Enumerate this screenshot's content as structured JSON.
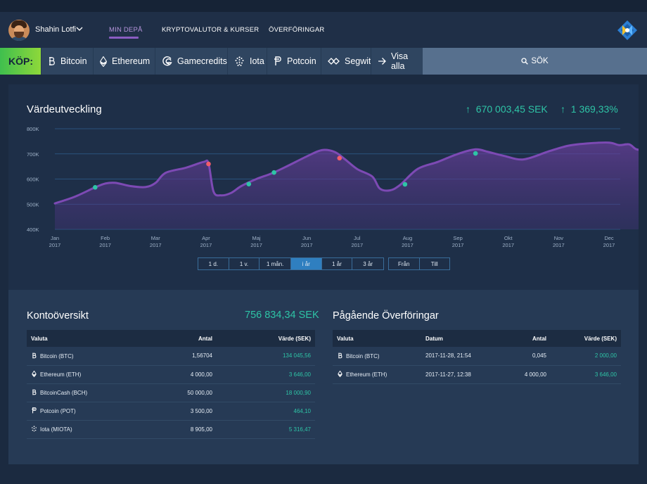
{
  "nav": {
    "username": "Shahin Lotfi",
    "links": [
      "MIN DEPÅ",
      "KRYPTOVALUTOR & KURSER",
      "ÖVERFÖRINGAR"
    ],
    "active_link": "MIN DEPÅ"
  },
  "buybar": {
    "label": "KÖP:",
    "coins": [
      {
        "label": "Bitcoin",
        "icon": "bitcoin-icon"
      },
      {
        "label": "Ethereum",
        "icon": "ethereum-icon"
      },
      {
        "label": "Gamecredits",
        "icon": "gamecredits-icon"
      },
      {
        "label": "Iota",
        "icon": "iota-icon"
      },
      {
        "label": "Potcoin",
        "icon": "potcoin-icon"
      },
      {
        "label": "Segwit",
        "icon": "segwit-icon"
      },
      {
        "label": "Visa alla",
        "icon": "arrow-right-icon"
      }
    ],
    "search_label": "SÖK"
  },
  "chart": {
    "title": "Värdeutveckling",
    "value_stat": "670 003,45 SEK",
    "percent_stat": "1 369,33%",
    "ranges": [
      "1 d.",
      "1 v.",
      "1 mån.",
      "i år",
      "1 år",
      "3 år"
    ],
    "active_range": "i år",
    "date_filters": [
      "Från",
      "Till"
    ]
  },
  "chart_data": {
    "type": "area",
    "x": [
      "Jan\n2017",
      "Feb\n2017",
      "Mar\n2017",
      "Apr\n2017",
      "Maj\n2017",
      "Jun\n2017",
      "Jul\n2017",
      "Aug\n2017",
      "Sep\n2017",
      "Okt\n2017",
      "Nov\n2017",
      "Dec\n2017"
    ],
    "xlabels": [
      {
        "month": "Jan",
        "year": "2017"
      },
      {
        "month": "Feb",
        "year": "2017"
      },
      {
        "month": "Mar",
        "year": "2017"
      },
      {
        "month": "Apr",
        "year": "2017"
      },
      {
        "month": "Maj",
        "year": "2017"
      },
      {
        "month": "Jun",
        "year": "2017"
      },
      {
        "month": "Jul",
        "year": "2017"
      },
      {
        "month": "Aug",
        "year": "2017"
      },
      {
        "month": "Sep",
        "year": "2017"
      },
      {
        "month": "Okt",
        "year": "2017"
      },
      {
        "month": "Nov",
        "year": "2017"
      },
      {
        "month": "Dec",
        "year": "2017"
      }
    ],
    "yticks": [
      "400K",
      "500K",
      "600K",
      "700K",
      "800K"
    ],
    "ylim": [
      400000,
      800000
    ],
    "series": [
      {
        "points": [
          [
            0.0,
            503000
          ],
          [
            0.4,
            530000
          ],
          [
            0.8,
            567000
          ],
          [
            1.0,
            582000
          ],
          [
            1.2,
            585000
          ],
          [
            1.5,
            572000
          ],
          [
            1.8,
            568000
          ],
          [
            2.0,
            585000
          ],
          [
            2.2,
            625000
          ],
          [
            2.6,
            645000
          ],
          [
            2.95,
            668000
          ],
          [
            3.05,
            662000
          ],
          [
            3.15,
            550000
          ],
          [
            3.3,
            535000
          ],
          [
            3.5,
            545000
          ],
          [
            3.7,
            572000
          ],
          [
            4.0,
            600000
          ],
          [
            4.3,
            622000
          ],
          [
            4.6,
            650000
          ],
          [
            5.0,
            690000
          ],
          [
            5.3,
            715000
          ],
          [
            5.55,
            708000
          ],
          [
            5.75,
            680000
          ],
          [
            6.0,
            640000
          ],
          [
            6.3,
            610000
          ],
          [
            6.45,
            562000
          ],
          [
            6.65,
            555000
          ],
          [
            6.85,
            576000
          ],
          [
            7.2,
            640000
          ],
          [
            7.6,
            668000
          ],
          [
            8.0,
            700000
          ],
          [
            8.35,
            718000
          ],
          [
            8.6,
            708000
          ],
          [
            8.9,
            693000
          ],
          [
            9.3,
            678000
          ],
          [
            9.8,
            710000
          ],
          [
            10.2,
            733000
          ],
          [
            10.6,
            742000
          ],
          [
            11.0,
            745000
          ],
          [
            11.2,
            735000
          ],
          [
            11.4,
            738000
          ],
          [
            11.55,
            718000
          ],
          [
            11.75,
            720000
          ],
          [
            12.0,
            768000
          ]
        ]
      }
    ],
    "markers": [
      {
        "x": 0.8,
        "y": 567000,
        "color": "#2ec4a6"
      },
      {
        "x": 3.05,
        "y": 660000,
        "color": "#f25c6a"
      },
      {
        "x": 3.85,
        "y": 580000,
        "color": "#2ec4a6"
      },
      {
        "x": 4.35,
        "y": 626000,
        "color": "#2ec4a6"
      },
      {
        "x": 5.65,
        "y": 683000,
        "color": "#f25c6a"
      },
      {
        "x": 6.95,
        "y": 579000,
        "color": "#2ec4a6"
      },
      {
        "x": 8.35,
        "y": 702000,
        "color": "#2ec4a6"
      }
    ],
    "grid": true,
    "colors": {
      "line": "#7d4ab4",
      "fill": "#6a3f9c"
    }
  },
  "account": {
    "title": "Kontoöversikt",
    "total": "756 834,34 SEK",
    "headers": [
      "Valuta",
      "Antal",
      "Värde (SEK)"
    ],
    "rows": [
      {
        "icon": "bitcoin-icon",
        "currency": "Bitcoin (BTC)",
        "amount": "1,56704",
        "value": "134 045,56"
      },
      {
        "icon": "ethereum-icon",
        "currency": "Ethereum (ETH)",
        "amount": "4 000,00",
        "value": "3 646,00"
      },
      {
        "icon": "bitcoin-icon",
        "currency": "BitcoinCash (BCH)",
        "amount": "50 000,00",
        "value": "18 000,90"
      },
      {
        "icon": "potcoin-icon",
        "currency": "Potcoin (POT)",
        "amount": "3 500,00",
        "value": "464,10"
      },
      {
        "icon": "iota-icon",
        "currency": "Iota (MIOTA)",
        "amount": "8 905,00",
        "value": "5 316,47"
      }
    ]
  },
  "transfers": {
    "title": "Pågående Överföringar",
    "headers": [
      "Valuta",
      "Datum",
      "Antal",
      "Värde (SEK)"
    ],
    "rows": [
      {
        "icon": "bitcoin-icon",
        "currency": "Bitcoin (BTC)",
        "date": "2017-11-28, 21:54",
        "amount": "0,045",
        "value": "2 000,00"
      },
      {
        "icon": "ethereum-icon",
        "currency": "Ethereum (ETH)",
        "date": "2017-11-27, 12:38",
        "amount": "4 000,00",
        "value": "3 646,00"
      }
    ]
  },
  "colors": {
    "accent": "#2ec4a6",
    "nav_active": "#b695dc",
    "buy_gradient_start": "#3fbf4e",
    "buy_gradient_end": "#8ed83a",
    "range_active": "#2f7fc0"
  }
}
